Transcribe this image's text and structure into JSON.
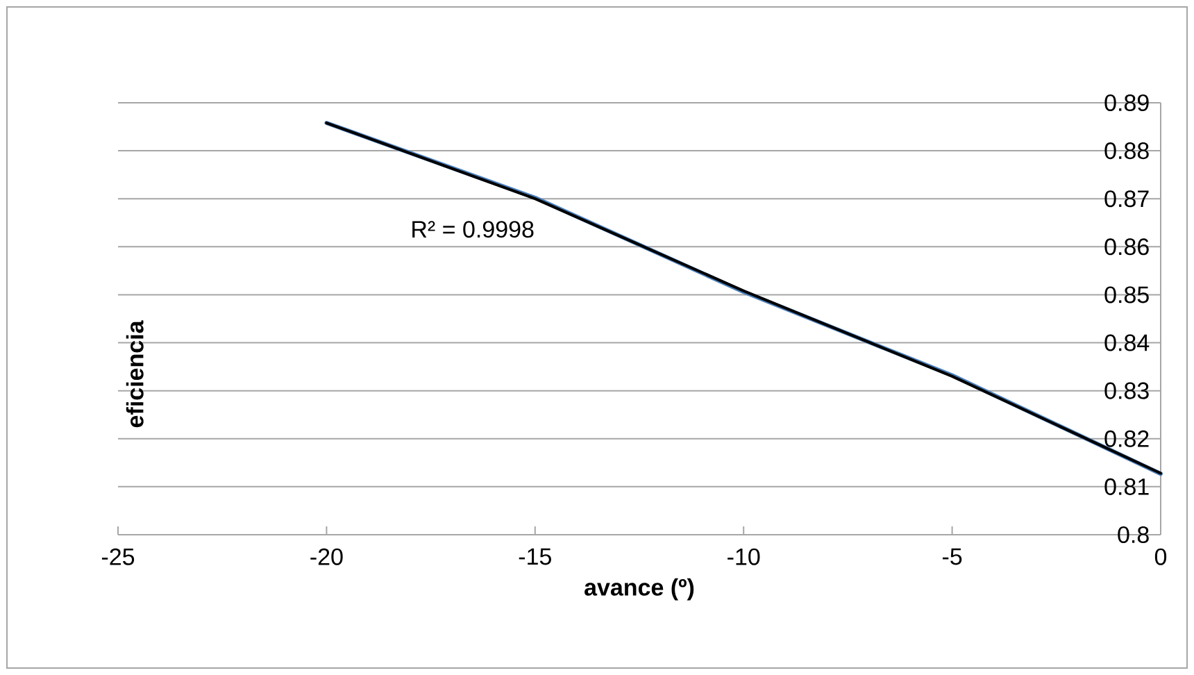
{
  "chart_data": {
    "type": "line",
    "xlabel": "avance (º)",
    "ylabel": "eficiencia",
    "x": [
      -20,
      -15,
      -10,
      -5,
      0
    ],
    "series": [
      {
        "color": "#4a7ebb",
        "values": [
          0.8858,
          0.8702,
          0.8506,
          0.8332,
          0.8127
        ]
      },
      {
        "color": "#000000",
        "values": [
          0.8858,
          0.87,
          0.8508,
          0.833,
          0.8128
        ]
      }
    ],
    "annotations": [
      "R² = 0.9998"
    ],
    "xlim": [
      -25,
      0
    ],
    "xticks": [
      -25,
      -20,
      -15,
      -10,
      -5,
      0
    ],
    "ylim": [
      0.8,
      0.89
    ],
    "yticks": [
      0.8,
      0.81,
      0.82,
      0.83,
      0.84,
      0.85,
      0.86,
      0.87,
      0.88,
      0.89
    ],
    "grid": "y"
  }
}
